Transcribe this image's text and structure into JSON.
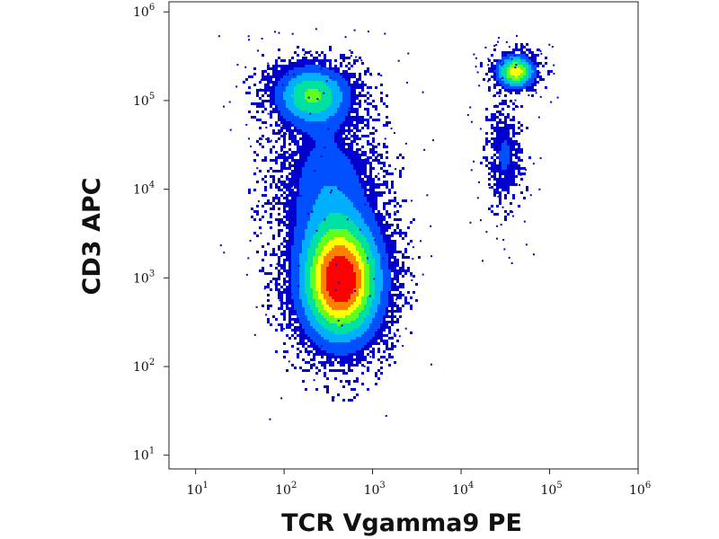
{
  "chart_data": {
    "type": "scatter",
    "title": "",
    "xlabel": "TCR Vgamma9 PE",
    "ylabel": "CD3 APC",
    "x_scale": "log",
    "y_scale": "log",
    "xlim": [
      5,
      1000000
    ],
    "ylim": [
      7,
      1300000
    ],
    "x_ticks": [
      {
        "base": "10",
        "exp": "1",
        "value": 10
      },
      {
        "base": "10",
        "exp": "2",
        "value": 100
      },
      {
        "base": "10",
        "exp": "3",
        "value": 1000
      },
      {
        "base": "10",
        "exp": "4",
        "value": 10000
      },
      {
        "base": "10",
        "exp": "5",
        "value": 100000
      },
      {
        "base": "10",
        "exp": "6",
        "value": 1000000
      }
    ],
    "y_ticks": [
      {
        "base": "10",
        "exp": "1",
        "value": 10
      },
      {
        "base": "10",
        "exp": "2",
        "value": 100
      },
      {
        "base": "10",
        "exp": "3",
        "value": 1000
      },
      {
        "base": "10",
        "exp": "4",
        "value": 10000
      },
      {
        "base": "10",
        "exp": "5",
        "value": 100000
      },
      {
        "base": "10",
        "exp": "6",
        "value": 1000000
      }
    ],
    "grid": false,
    "legend": "none",
    "color_scale": [
      "#0000cc",
      "#0050ff",
      "#00b0ff",
      "#00e0a0",
      "#60ff20",
      "#ffff00",
      "#ff8000",
      "#ff0000"
    ],
    "populations": [
      {
        "center_x": 200,
        "center_y": 120000,
        "spread_x_decades": 0.28,
        "spread_y_decades": 0.22,
        "weight": 0.3,
        "peak_density": 0.55
      },
      {
        "center_x": 420,
        "center_y": 950,
        "spread_x_decades": 0.3,
        "spread_y_decades": 0.45,
        "weight": 0.5,
        "peak_density": 1.0
      },
      {
        "center_x": 300,
        "center_y": 12000,
        "spread_x_decades": 0.35,
        "spread_y_decades": 0.5,
        "weight": 0.12,
        "peak_density": 0.25
      },
      {
        "center_x": 40000,
        "center_y": 220000,
        "spread_x_decades": 0.14,
        "spread_y_decades": 0.12,
        "weight": 0.05,
        "peak_density": 0.75
      },
      {
        "center_x": 30000,
        "center_y": 25000,
        "spread_x_decades": 0.12,
        "spread_y_decades": 0.35,
        "weight": 0.03,
        "peak_density": 0.2
      }
    ]
  }
}
